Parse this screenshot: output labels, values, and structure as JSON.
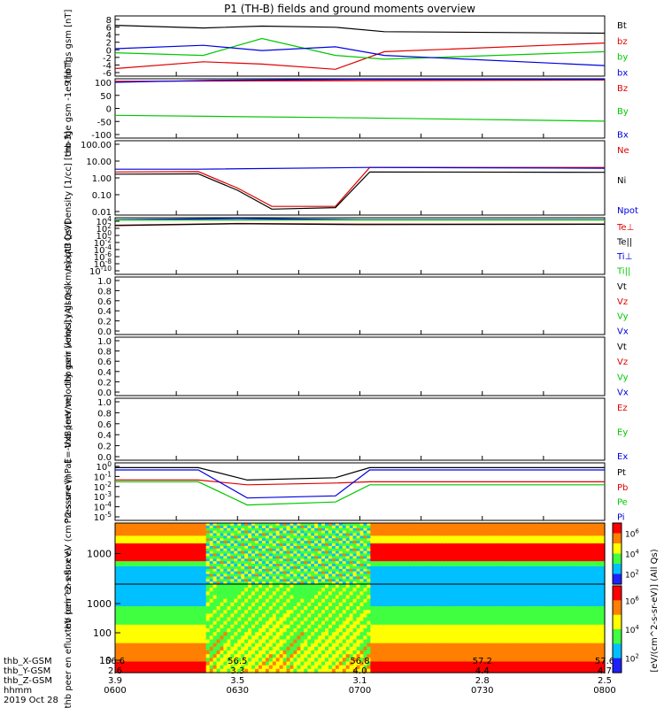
{
  "title": "P1 (TH-B) fields and ground moments overview",
  "colors": {
    "black": "#000000",
    "red": "#e00000",
    "green": "#00c800",
    "blue": "#0000e0"
  },
  "x_time_ticks": [
    "0600",
    "0630",
    "0700",
    "0730",
    "0800"
  ],
  "ephemeris": {
    "labels": [
      "thb_X-GSM",
      "thb_Y-GSM",
      "thb_Z-GSM",
      "hhmm",
      "2019 Oct 28"
    ],
    "rows": [
      [
        "56.6",
        "56.5",
        "56.8",
        "57.2",
        "57.6"
      ],
      [
        "2.6",
        "3.3",
        "4.0",
        "4.4",
        "4.7"
      ],
      [
        "3.9",
        "3.5",
        "3.1",
        "2.8",
        "2.5"
      ]
    ]
  },
  "colorbar": {
    "label": "[eV/(cm^2-s-sr-eV)] (All Qs)",
    "ticks_top": [
      "10^6",
      "10^4",
      "10^2"
    ],
    "ticks_bottom": [
      "10^6",
      "10^4",
      "10^2"
    ]
  },
  "chart_data": [
    {
      "type": "line",
      "ylabel": "thb fgs gsm [nT]",
      "yticks": [
        "8",
        "6",
        "4",
        "2",
        "0",
        "-2",
        "-4",
        "-6"
      ],
      "ylim": [
        -7,
        9
      ],
      "series": [
        {
          "name": "Bt",
          "color": "black",
          "x": [
            0,
            0.18,
            0.3,
            0.45,
            0.55,
            1
          ],
          "y": [
            6.5,
            5.8,
            6.3,
            6.0,
            4.8,
            4.4
          ]
        },
        {
          "name": "bz",
          "color": "red",
          "x": [
            0,
            0.18,
            0.3,
            0.45,
            0.55,
            1
          ],
          "y": [
            -5.0,
            -3.2,
            -3.8,
            -5.2,
            -0.5,
            1.8
          ]
        },
        {
          "name": "by",
          "color": "green",
          "x": [
            0,
            0.18,
            0.3,
            0.45,
            0.55,
            1
          ],
          "y": [
            -0.8,
            -1.5,
            3.0,
            -1.5,
            -2.5,
            -0.5
          ]
        },
        {
          "name": "bx",
          "color": "blue",
          "x": [
            0,
            0.18,
            0.3,
            0.45,
            0.55,
            1
          ],
          "y": [
            0.3,
            1.2,
            -0.2,
            0.8,
            -1.5,
            -4.2
          ]
        }
      ]
    },
    {
      "type": "line",
      "ylabel": "thb fge gsm -1e9 [nT]",
      "yticks": [
        "100",
        "50",
        "0",
        "-50",
        "-100"
      ],
      "ylim": [
        -125,
        110
      ],
      "series": [
        {
          "name": "Bz",
          "color": "red",
          "x": [
            0,
            1
          ],
          "y": [
            100,
            105
          ]
        },
        {
          "name": "By",
          "color": "green",
          "x": [
            0,
            0.5,
            1
          ],
          "y": [
            -35,
            -45,
            -58
          ]
        },
        {
          "name": "Bx",
          "color": "blue",
          "x": [
            0,
            0.2,
            0.5,
            1
          ],
          "y": [
            96,
            104,
            108,
            108
          ]
        }
      ]
    },
    {
      "type": "line",
      "scale": "log",
      "ylabel": "Density [1/cc] [cm-3]",
      "yticks": [
        "100.00",
        "10.00",
        "1.00",
        "0.10",
        "0.01"
      ],
      "ylim": [
        0.001,
        1000
      ],
      "series": [
        {
          "name": "Ne",
          "color": "red",
          "x": [
            0,
            0.17,
            0.25,
            0.32,
            0.45,
            0.52,
            1
          ],
          "y": [
            3.0,
            3.2,
            0.15,
            0.005,
            0.005,
            7.0,
            7.0
          ]
        },
        {
          "name": "Ni",
          "color": "black",
          "x": [
            0,
            0.17,
            0.25,
            0.32,
            0.45,
            0.52,
            1
          ],
          "y": [
            2.0,
            2.1,
            0.1,
            0.003,
            0.004,
            3.0,
            2.8
          ]
        },
        {
          "name": "Npot",
          "color": "blue",
          "x": [
            0,
            0.17,
            0.52,
            1
          ],
          "y": [
            5.0,
            5.0,
            7.0,
            6.0
          ]
        }
      ]
    },
    {
      "type": "line",
      "scale": "log",
      "ylabel": "moqt3 [eV]",
      "yticks": [
        "10^4",
        "10^2",
        "10^0",
        "10^-2",
        "10^-4",
        "10^-6",
        "10^-8",
        "10^-10"
      ],
      "ylim": [
        1e-11,
        10000
      ],
      "series": [
        {
          "name": "Te⊥",
          "color": "red",
          "x": [
            0,
            0.25,
            0.5,
            1
          ],
          "y": [
            100,
            300,
            200,
            220
          ]
        },
        {
          "name": "Te||",
          "color": "black",
          "x": [
            0,
            0.25,
            0.5,
            1
          ],
          "y": [
            80,
            250,
            150,
            180
          ]
        },
        {
          "name": "Ti⊥",
          "color": "blue",
          "x": [
            0,
            0.25,
            0.5,
            1
          ],
          "y": [
            3000,
            6000,
            3000,
            3000
          ]
        },
        {
          "name": "Ti||",
          "color": "green",
          "x": [
            0,
            1
          ],
          "y": [
            2500,
            2500
          ]
        }
      ]
    },
    {
      "type": "line",
      "ylabel": "thb peir velocity gsm [km/s] (All Qs)",
      "yticks": [
        "1.0",
        "0.8",
        "0.6",
        "0.4",
        "0.2",
        "0.0"
      ],
      "ylim": [
        0,
        1
      ],
      "series": [
        {
          "name": "Vt",
          "color": "black",
          "x": [],
          "y": []
        },
        {
          "name": "Vz",
          "color": "red",
          "x": [],
          "y": []
        },
        {
          "name": "Vy",
          "color": "green",
          "x": [],
          "y": []
        },
        {
          "name": "Vx",
          "color": "blue",
          "x": [],
          "y": []
        }
      ]
    },
    {
      "type": "line",
      "ylabel": "thb peer velocity gsm [km/s] (All Qs)",
      "yticks": [
        "1.0",
        "0.8",
        "0.6",
        "0.4",
        "0.2",
        "0.0"
      ],
      "ylim": [
        0,
        1
      ],
      "series": [
        {
          "name": "Vt",
          "color": "black",
          "x": [],
          "y": []
        },
        {
          "name": "Vz",
          "color": "red",
          "x": [],
          "y": []
        },
        {
          "name": "Vy",
          "color": "green",
          "x": [],
          "y": []
        },
        {
          "name": "Vx",
          "color": "blue",
          "x": [],
          "y": []
        }
      ]
    },
    {
      "type": "line",
      "ylabel": "E=-VxB [mV/m]",
      "yticks": [
        "1.0",
        "0.8",
        "0.6",
        "0.4",
        "0.2",
        "0.0"
      ],
      "ylim": [
        0,
        1
      ],
      "series": [
        {
          "name": "Ez",
          "color": "red",
          "x": [],
          "y": []
        },
        {
          "name": "Ey",
          "color": "green",
          "x": [],
          "y": []
        },
        {
          "name": "Ex",
          "color": "blue",
          "x": [],
          "y": []
        }
      ]
    },
    {
      "type": "line",
      "scale": "log",
      "ylabel": "Pressure [nPa]",
      "yticks": [
        "10^0",
        "10^-1",
        "10^-2",
        "10^-3",
        "10^-4",
        "10^-5"
      ],
      "ylim": [
        3e-06,
        1.5
      ],
      "series": [
        {
          "name": "Pt",
          "color": "black",
          "x": [
            0,
            0.17,
            0.27,
            0.45,
            0.52,
            1
          ],
          "y": [
            0.5,
            0.5,
            0.03,
            0.05,
            0.5,
            0.5
          ]
        },
        {
          "name": "Pb",
          "color": "red",
          "x": [
            0,
            0.17,
            0.27,
            0.45,
            0.52,
            1
          ],
          "y": [
            0.03,
            0.03,
            0.01,
            0.015,
            0.02,
            0.02
          ]
        },
        {
          "name": "Pe",
          "color": "green",
          "x": [
            0,
            0.17,
            0.27,
            0.45,
            0.52,
            1
          ],
          "y": [
            0.02,
            0.02,
            0.0001,
            0.0002,
            0.01,
            0.01
          ]
        },
        {
          "name": "Pi",
          "color": "blue",
          "x": [
            0,
            0.17,
            0.27,
            0.45,
            0.52,
            1
          ],
          "y": [
            0.3,
            0.3,
            0.0005,
            0.0008,
            0.3,
            0.3
          ]
        }
      ]
    },
    {
      "type": "heatmap",
      "ylabel": "thb peir en eflux eV (cm^2-s-sr-eV)",
      "yticks": [
        "1000"
      ]
    },
    {
      "type": "heatmap",
      "ylabel": "thb peer en eflux eV (cm^2-s-sr-eV)",
      "yticks": [
        "1000",
        "100",
        "10"
      ]
    }
  ]
}
